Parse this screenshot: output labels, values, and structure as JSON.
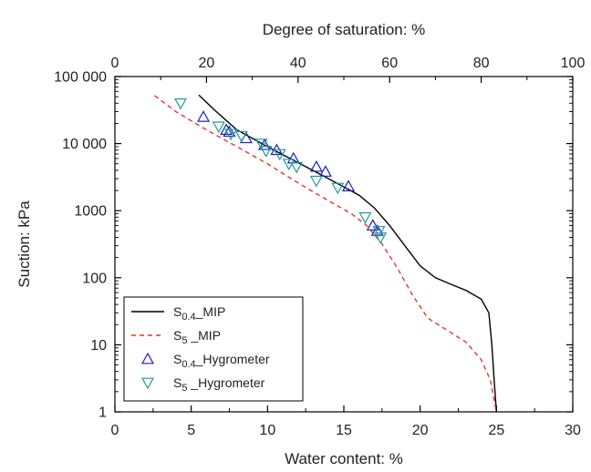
{
  "chart_data": {
    "type": "line",
    "xlabel": "Water content: %",
    "ylabel": "Suction: kPa",
    "x2label": "Degree of saturation: %",
    "xlim": [
      0,
      30
    ],
    "x2lim": [
      0,
      100
    ],
    "ylim": [
      1,
      100000
    ],
    "yscale": "log",
    "xticks": [
      "0",
      "5",
      "10",
      "15",
      "20",
      "25",
      "30"
    ],
    "x2ticks": [
      "0",
      "20",
      "40",
      "60",
      "80",
      "100"
    ],
    "yticks": [
      "1",
      "10",
      "100",
      "1000",
      "10 000",
      "100 000"
    ],
    "grid": false,
    "legend_position": "bottom-left",
    "series": [
      {
        "name": "S0.4_MIP",
        "legend": {
          "base": "S",
          "sub": "0.4",
          "suffix": "_MIP"
        },
        "style": "line-solid",
        "color": "#000000",
        "points": [
          [
            5.5,
            53000
          ],
          [
            6.5,
            32000
          ],
          [
            8,
            16000
          ],
          [
            10,
            9000
          ],
          [
            12,
            5200
          ],
          [
            14,
            3000
          ],
          [
            16,
            1700
          ],
          [
            17,
            1100
          ],
          [
            18,
            600
          ],
          [
            19,
            300
          ],
          [
            20,
            150
          ],
          [
            21,
            100
          ],
          [
            22,
            80
          ],
          [
            23,
            65
          ],
          [
            24,
            48
          ],
          [
            24.5,
            30
          ],
          [
            24.7,
            10
          ],
          [
            24.85,
            3
          ],
          [
            25,
            1
          ]
        ]
      },
      {
        "name": "S5_MIP",
        "legend": {
          "base": "S",
          "sub": "5",
          "suffix": " _MIP"
        },
        "style": "line-dashed",
        "color": "#e8332a",
        "points": [
          [
            2.6,
            52000
          ],
          [
            4,
            30000
          ],
          [
            6,
            16000
          ],
          [
            8,
            9000
          ],
          [
            10,
            5000
          ],
          [
            12,
            2600
          ],
          [
            14,
            1400
          ],
          [
            15.5,
            900
          ],
          [
            16.5,
            600
          ],
          [
            17.5,
            320
          ],
          [
            18.5,
            140
          ],
          [
            19.5,
            55
          ],
          [
            20.5,
            25
          ],
          [
            21.5,
            18
          ],
          [
            23,
            11
          ],
          [
            24,
            6
          ],
          [
            24.6,
            3
          ],
          [
            25,
            1
          ]
        ]
      },
      {
        "name": "S0.4_Hygrometer",
        "legend": {
          "base": "S",
          "sub": "0.4",
          "suffix": "_Hygrometer"
        },
        "style": "marker-triangle-up",
        "color": "#1f1fbf",
        "points": [
          [
            5.8,
            25000
          ],
          [
            7.3,
            16000
          ],
          [
            7.5,
            15000
          ],
          [
            8.6,
            12000
          ],
          [
            9.8,
            9500
          ],
          [
            10.6,
            8000
          ],
          [
            11.7,
            6000
          ],
          [
            13.2,
            4500
          ],
          [
            13.8,
            3800
          ],
          [
            15.3,
            2300
          ],
          [
            16.9,
            600
          ],
          [
            17.2,
            500
          ]
        ]
      },
      {
        "name": "S5_Hygrometer",
        "legend": {
          "base": "S",
          "sub": "5",
          "suffix": " _Hygrometer"
        },
        "style": "marker-triangle-down",
        "color": "#1f9a9a",
        "points": [
          [
            4.3,
            40000
          ],
          [
            6.8,
            18000
          ],
          [
            7.6,
            14000
          ],
          [
            8.3,
            13000
          ],
          [
            9.6,
            10000
          ],
          [
            9.9,
            7800
          ],
          [
            10.8,
            7000
          ],
          [
            11.4,
            5000
          ],
          [
            11.9,
            4500
          ],
          [
            13.2,
            2800
          ],
          [
            14.6,
            2200
          ],
          [
            16.4,
            800
          ],
          [
            17.3,
            500
          ],
          [
            17.4,
            400
          ]
        ]
      }
    ]
  }
}
